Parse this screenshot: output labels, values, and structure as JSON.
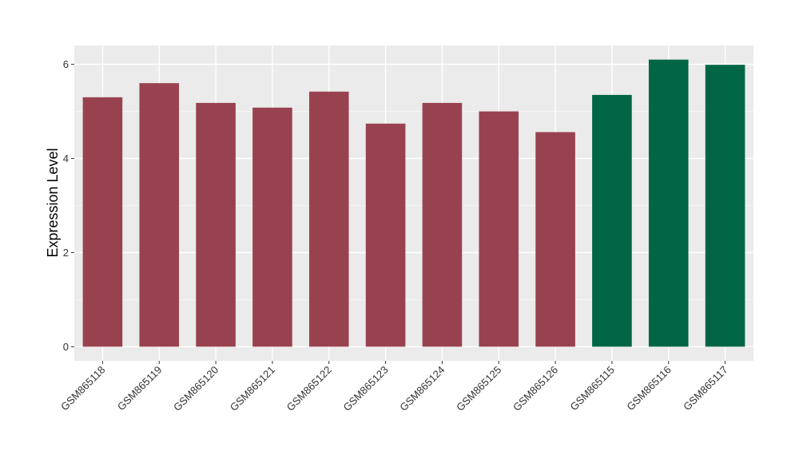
{
  "chart_data": {
    "type": "bar",
    "title": "",
    "xlabel": "",
    "ylabel": "Expression Level",
    "categories": [
      "GSM865118",
      "GSM865119",
      "GSM865120",
      "GSM865121",
      "GSM865122",
      "GSM865123",
      "GSM865124",
      "GSM865125",
      "GSM865126",
      "GSM865115",
      "GSM865116",
      "GSM865117"
    ],
    "values": [
      5.3,
      5.6,
      5.18,
      5.08,
      5.42,
      4.74,
      5.18,
      5.0,
      4.56,
      5.35,
      6.1,
      5.99
    ],
    "bar_colors": [
      "#99424f",
      "#99424f",
      "#99424f",
      "#99424f",
      "#99424f",
      "#99424f",
      "#99424f",
      "#99424f",
      "#99424f",
      "#006645",
      "#006645",
      "#006645"
    ],
    "yticks": [
      0,
      2,
      4,
      6
    ],
    "ylim": [
      -0.3,
      6.4
    ],
    "grid": true,
    "legend": "none",
    "colors": {
      "panel_background": "#ebebeb",
      "grid_major": "#ffffff",
      "grid_minor": "#f5f5f5",
      "group_a": "#99424f",
      "group_b": "#006645"
    }
  }
}
